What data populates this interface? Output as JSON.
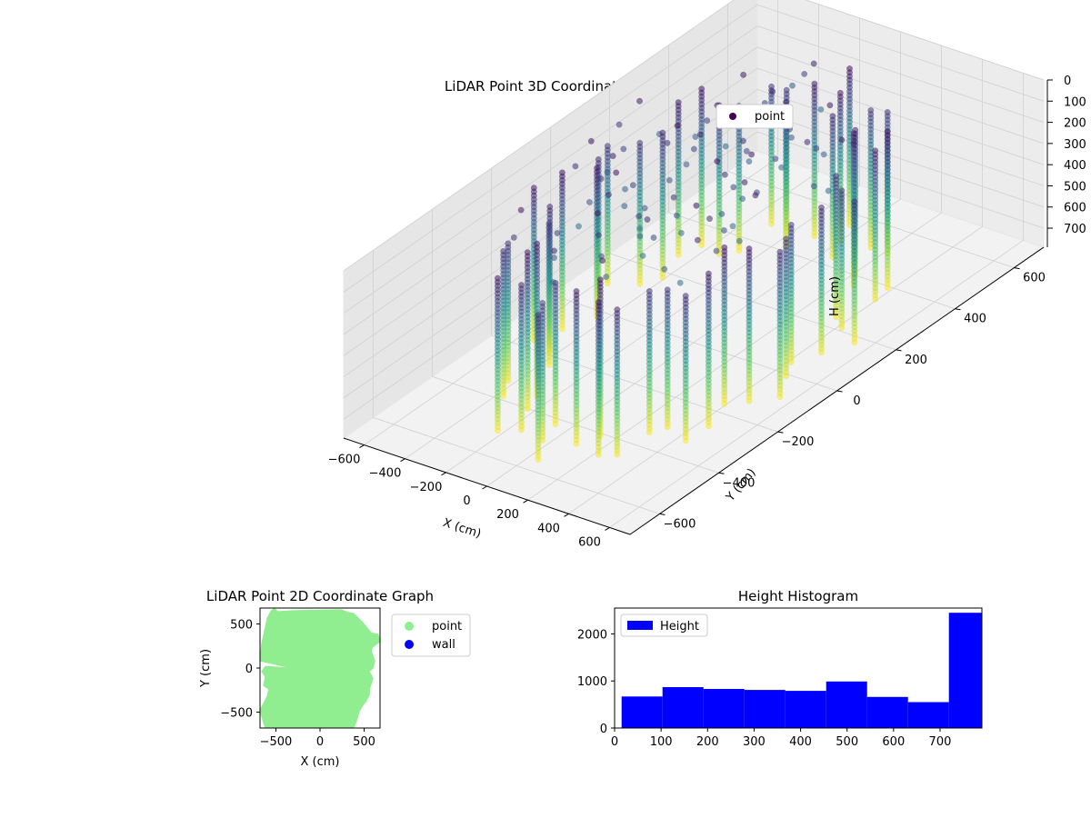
{
  "chart_data": [
    {
      "type": "scatter",
      "title": "LiDAR Point 3D Coordinate Graph",
      "xlabel": "X (cm)",
      "ylabel": "Y (cm)",
      "zlabel": "H (cm)",
      "xlim": [
        -700,
        700
      ],
      "ylim": [
        -700,
        700
      ],
      "zlim": [
        0,
        790
      ],
      "z_inverted": true,
      "x_ticks": [
        -600,
        -400,
        -200,
        0,
        200,
        400,
        600
      ],
      "y_ticks": [
        -600,
        -400,
        -200,
        0,
        200,
        400,
        600
      ],
      "z_ticks": [
        0,
        100,
        200,
        300,
        400,
        500,
        600,
        700
      ],
      "colormap": "viridis",
      "color_by": "height",
      "legend": {
        "position": "top-right",
        "entries": [
          {
            "label": "point",
            "color": "#440154"
          }
        ]
      },
      "grid": true,
      "point_cloud": {
        "shape": "vertical wall strips around a roughly circular room",
        "radius_cm": 560,
        "height_range_cm": [
          0,
          790
        ]
      }
    },
    {
      "type": "scatter",
      "title": "LiDAR Point 2D Coordinate Graph",
      "xlabel": "X (cm)",
      "ylabel": "Y (cm)",
      "xlim": [
        -680,
        680
      ],
      "ylim": [
        -680,
        680
      ],
      "x_ticks": [
        -500,
        0,
        500
      ],
      "y_ticks": [
        -500,
        0,
        500
      ],
      "legend": {
        "position": "outside-right",
        "entries": [
          {
            "label": "point",
            "color": "#90ee90"
          },
          {
            "label": "wall",
            "color": "#0000ff"
          }
        ]
      },
      "outline": [
        [
          -520,
          680
        ],
        [
          -480,
          640
        ],
        [
          -300,
          650
        ],
        [
          240,
          660
        ],
        [
          320,
          630
        ],
        [
          380,
          620
        ],
        [
          480,
          520
        ],
        [
          580,
          400
        ],
        [
          660,
          380
        ],
        [
          680,
          300
        ],
        [
          600,
          240
        ],
        [
          580,
          200
        ],
        [
          620,
          80
        ],
        [
          600,
          0
        ],
        [
          560,
          -40
        ],
        [
          600,
          -120
        ],
        [
          560,
          -240
        ],
        [
          560,
          -300
        ],
        [
          520,
          -380
        ],
        [
          480,
          -430
        ],
        [
          440,
          -500
        ],
        [
          420,
          -580
        ],
        [
          400,
          -640
        ],
        [
          380,
          -680
        ],
        [
          -620,
          -680
        ],
        [
          -640,
          -620
        ],
        [
          -680,
          -480
        ],
        [
          -600,
          -320
        ],
        [
          -580,
          -240
        ],
        [
          -640,
          -200
        ],
        [
          -620,
          -100
        ],
        [
          -660,
          -40
        ],
        [
          -620,
          20
        ],
        [
          -320,
          0
        ],
        [
          -680,
          80
        ],
        [
          -660,
          280
        ],
        [
          -620,
          460
        ],
        [
          -600,
          560
        ],
        [
          -560,
          640
        ]
      ]
    },
    {
      "type": "bar",
      "title": "Height Histogram",
      "xlabel": "",
      "ylabel": "",
      "xlim": [
        0,
        790
      ],
      "ylim": [
        0,
        2550
      ],
      "x_ticks": [
        0,
        100,
        200,
        300,
        400,
        500,
        600,
        700
      ],
      "y_ticks": [
        0,
        1000,
        2000
      ],
      "color": "#0000ff",
      "legend": {
        "position": "top-left",
        "entries": [
          {
            "label": "Height",
            "color": "#0000ff"
          }
        ]
      },
      "bins": [
        {
          "x0": 15,
          "x1": 103,
          "count": 670
        },
        {
          "x0": 103,
          "x1": 191,
          "count": 870
        },
        {
          "x0": 191,
          "x1": 279,
          "count": 830
        },
        {
          "x0": 279,
          "x1": 367,
          "count": 810
        },
        {
          "x0": 367,
          "x1": 455,
          "count": 790
        },
        {
          "x0": 455,
          "x1": 543,
          "count": 990
        },
        {
          "x0": 543,
          "x1": 631,
          "count": 660
        },
        {
          "x0": 631,
          "x1": 719,
          "count": 550
        },
        {
          "x0": 719,
          "x1": 790,
          "count": 2450
        }
      ]
    }
  ]
}
